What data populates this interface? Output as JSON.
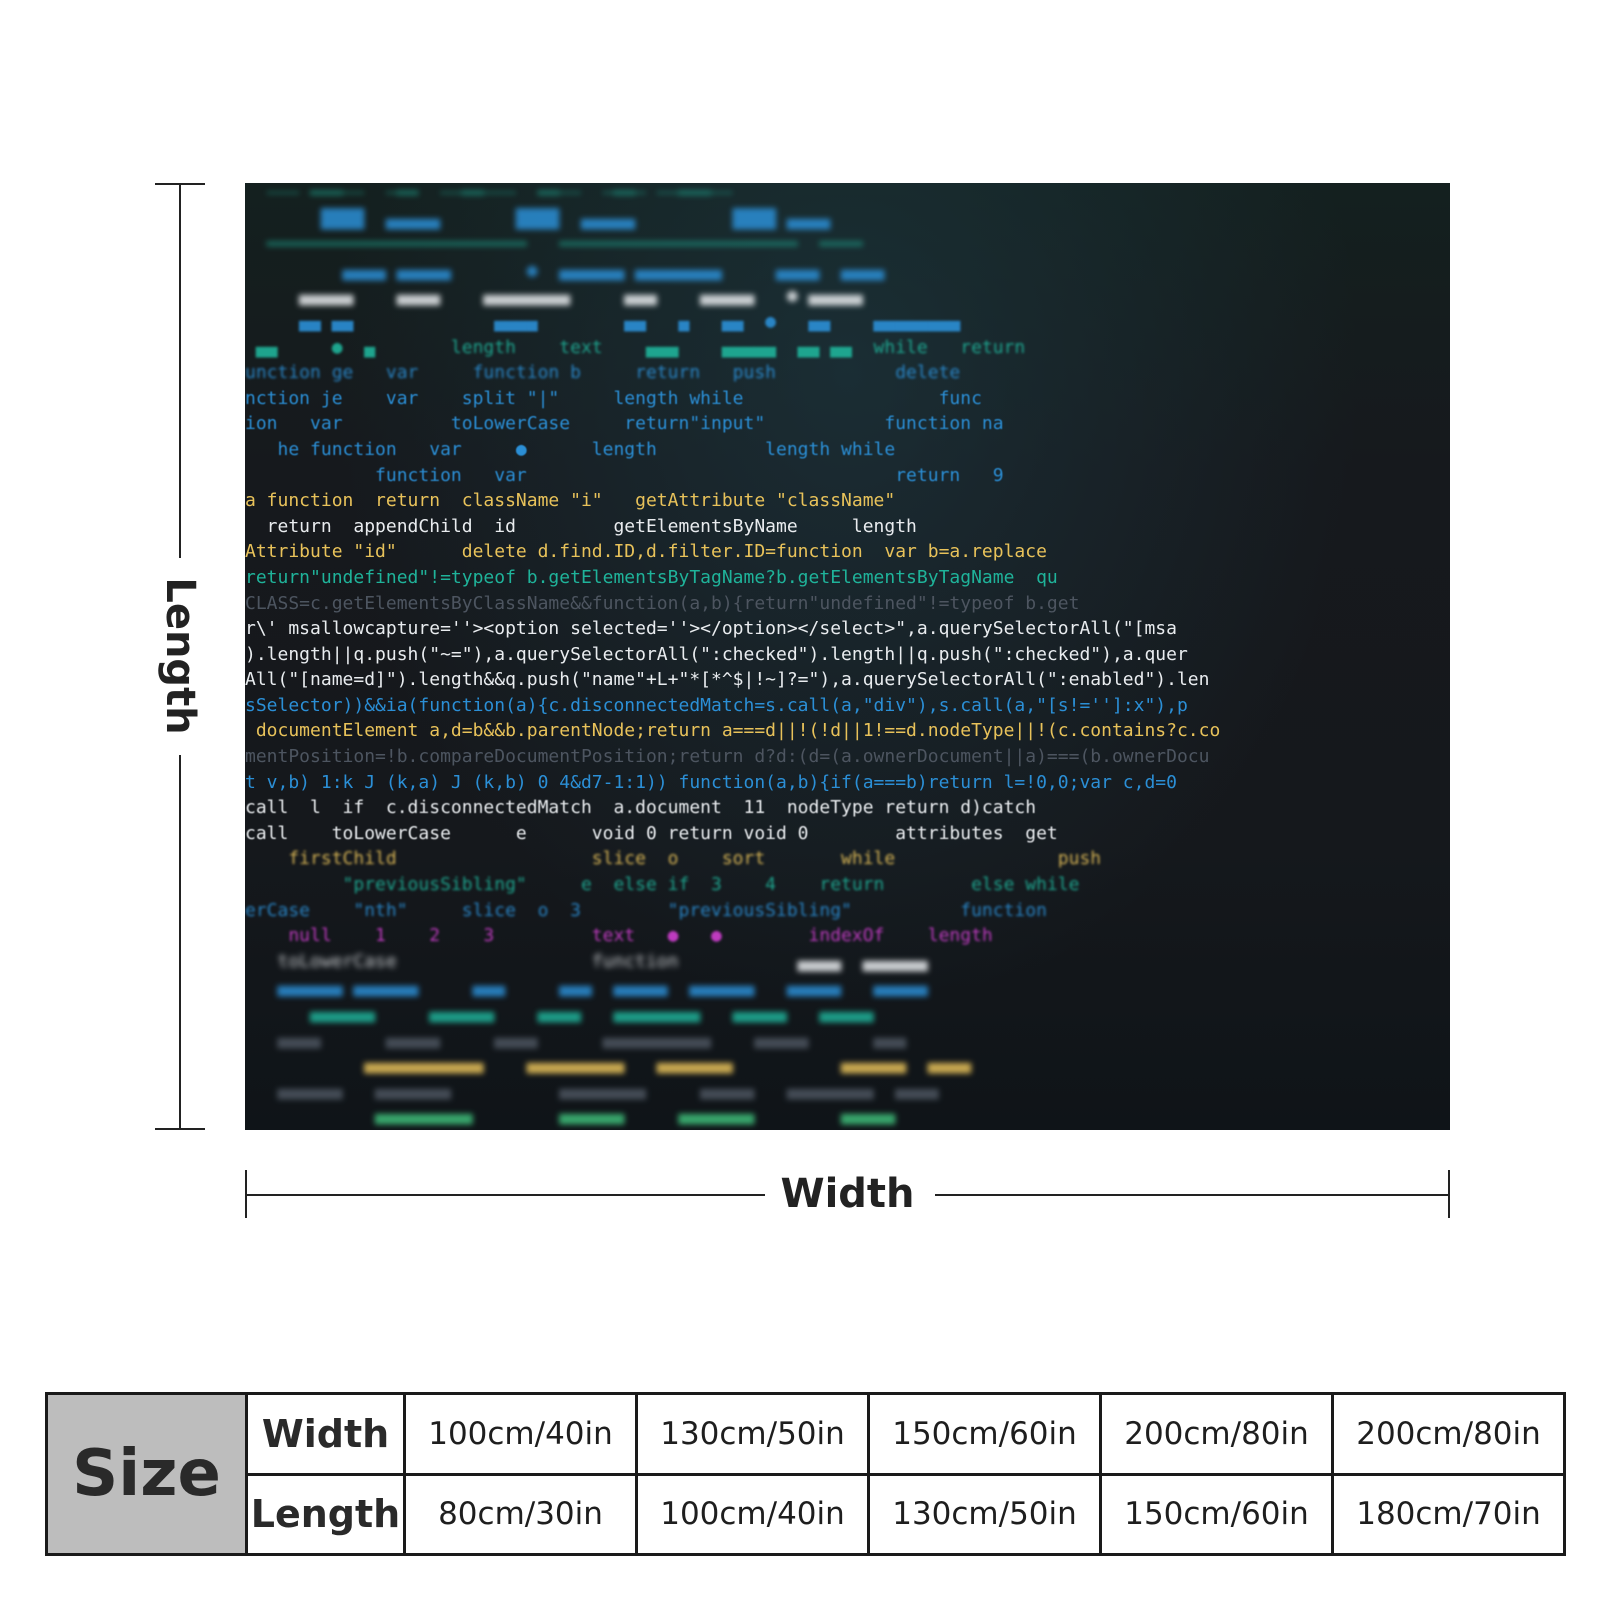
{
  "product_image": {
    "description_icon": "code-blanket-image",
    "code_lines": [
      {
        "cls": "c-teal blur-strong",
        "text": "  ╌╌╌ ═══╌╌  ╌══  ╌╌══╌╌╌  ══╌╌  ╌══╌ ╌╌═══╌╌"
      },
      {
        "cls": "c-blue blur-strong",
        "text": "       ████  ▄▄▄▄▄       ████  ▄▄▄▄▄         ████ ▄▄▄▄"
      },
      {
        "cls": "c-teal blur-strong",
        "text": "  ════════════════════════   ══════════════════════  ════"
      },
      {
        "cls": "c-blue blur-strong",
        "text": "         ▄▄▄▄ ▄▄▄▄▄       ●  ▄▄▄▄▄▄ ▄▄▄▄▄▄▄▄     ▄▄▄▄  ▄▄▄▄"
      },
      {
        "cls": "c-white blur-strong",
        "text": "     ▄▄▄▄▄    ▄▄▄▄    ▄▄▄▄▄▄▄▄     ▄▄▄    ▄▄▄▄▄   ● ▄▄▄▄▄"
      },
      {
        "cls": "c-blue blur-mid",
        "text": "     ▄▄ ▄▄             ▄▄▄▄        ▄▄   ▄   ▄▄  ●   ▄▄    ▄▄▄▄▄▄▄▄"
      },
      {
        "cls": "c-teal blur-mid",
        "text": " ▄▄     ●  ▄       length    text    ▄▄▄    ▄▄▄▄▄  ▄▄ ▄▄  while   return"
      },
      {
        "cls": "c-blue blur-mid",
        "text": "unction ge   var     function b     return   push           delete"
      },
      {
        "cls": "c-blue blur-soft",
        "text": "nction je    var    split \"|\"     length while                  func"
      },
      {
        "cls": "c-blue blur-soft",
        "text": "ion   var          toLowerCase     return\"input\"           function na"
      },
      {
        "cls": "c-blue blur-soft",
        "text": "   he function   var     ●      length          length while"
      },
      {
        "cls": "c-blue blur-soft",
        "text": "            function   var                                  return   9"
      },
      {
        "cls": "c-yellow",
        "text": "a function  return  className \"i\"   getAttribute \"className\""
      },
      {
        "cls": "c-white",
        "text": "  return  appendChild  id         getElementsByName     length"
      },
      {
        "cls": "c-yellow",
        "text": "Attribute \"id\"      delete d.find.ID,d.filter.ID=function  var b=a.replace"
      },
      {
        "cls": "c-teal",
        "text": "return\"undefined\"!=typeof b.getElementsByTagName?b.getElementsByTagName  qu"
      },
      {
        "cls": "c-grey",
        "text": "CLASS=c.getElementsByClassName&&function(a,b){return\"undefined\"!=typeof b.get"
      },
      {
        "cls": "c-white",
        "text": "r\\' msallowcapture=''><option selected=''></option></select>\",a.querySelectorAll(\"[msa"
      },
      {
        "cls": "c-white",
        "text": ").length||q.push(\"~=\"),a.querySelectorAll(\":checked\").length||q.push(\":checked\"),a.quer"
      },
      {
        "cls": "c-white",
        "text": "All(\"[name=d]\").length&&q.push(\"name\"+L+\"*[*^$|!~]?=\"),a.querySelectorAll(\":enabled\").len"
      },
      {
        "cls": "c-blue",
        "text": "sSelector))&&ia(function(a){c.disconnectedMatch=s.call(a,\"div\"),s.call(a,\"[s!='']:x\"),p"
      },
      {
        "cls": "c-yellow",
        "text": " documentElement a,d=b&&b.parentNode;return a===d||!(!d||1!==d.nodeType||!(c.contains?c.co"
      },
      {
        "cls": "c-grey",
        "text": "mentPosition=!b.compareDocumentPosition;return d?d:(d=(a.ownerDocument||a)===(b.ownerDocu"
      },
      {
        "cls": "c-blue",
        "text": "t v,b) 1:k J (k,a) J (k,b) 0 4&d7-1:1)) function(a,b){if(a===b)return l=!0,0;var c,d=0"
      },
      {
        "cls": "c-white blur-soft",
        "text": "call  l  if  c.disconnectedMatch  a.document  11  nodeType return d)catch"
      },
      {
        "cls": "c-white blur-soft",
        "text": "call    toLowerCase      e      void 0 return void 0        attributes  get"
      },
      {
        "cls": "c-yellow blur-mid",
        "text": "    firstChild                  slice  o    sort       while               push"
      },
      {
        "cls": "c-teal blur-mid",
        "text": "         \"previousSibling\"     e  else if  3    4    return        else while"
      },
      {
        "cls": "c-blue blur-mid",
        "text": "erCase    \"nth\"     slice  o  3        \"previousSibling\"          function"
      },
      {
        "cls": "c-magenta blur-mid",
        "text": "    null    1    2    3         text   ●   ●        indexOf    length"
      },
      {
        "cls": "c-white blur-strong",
        "text": "   toLowerCase                  function           ▄▄▄▄  ▄▄▄▄▄▄"
      },
      {
        "cls": "c-blue blur-strong",
        "text": "   ▄▄▄▄▄▄ ▄▄▄▄▄▄     ▄▄▄     ▄▄▄  ▄▄▄▄▄  ▄▄▄▄▄▄   ▄▄▄▄▄   ▄▄▄▄▄"
      },
      {
        "cls": "c-teal blur-strong",
        "text": "      ▄▄▄▄▄▄     ▄▄▄▄▄▄    ▄▄▄▄   ▄▄▄▄▄▄▄▄   ▄▄▄▄▄   ▄▄▄▄▄"
      },
      {
        "cls": "c-grey blur-strong",
        "text": "   ▄▄▄▄      ▄▄▄▄▄     ▄▄▄▄      ▄▄▄▄▄▄▄▄▄▄    ▄▄▄▄▄      ▄▄▄"
      },
      {
        "cls": "c-yellow blur-strong",
        "text": "           ▄▄▄▄▄▄▄▄▄▄▄    ▄▄▄▄▄▄▄▄▄   ▄▄▄▄▄▄▄          ▄▄▄▄▄▄  ▄▄▄▄"
      },
      {
        "cls": "c-grey blur-strong",
        "text": "   ▄▄▄▄▄▄   ▄▄▄▄▄▄▄          ▄▄▄▄▄▄▄▄     ▄▄▄▄▄   ▄▄▄▄▄▄▄▄  ▄▄▄▄"
      },
      {
        "cls": "c-green blur-strong",
        "text": "            ▄▄▄▄▄▄▄▄▄        ▄▄▄▄▄▄     ▄▄▄▄▄▄▄        ▄▄▄▄▄"
      }
    ]
  },
  "dimensions": {
    "length_label": "Length",
    "width_label": "Width"
  },
  "size_table": {
    "header": "Size",
    "width_label": "Width",
    "length_label": "Length",
    "widths": [
      "100cm/40in",
      "130cm/50in",
      "150cm/60in",
      "200cm/80in",
      "200cm/80in"
    ],
    "lengths": [
      "80cm/30in",
      "100cm/40in",
      "130cm/50in",
      "150cm/60in",
      "180cm/70in"
    ]
  }
}
